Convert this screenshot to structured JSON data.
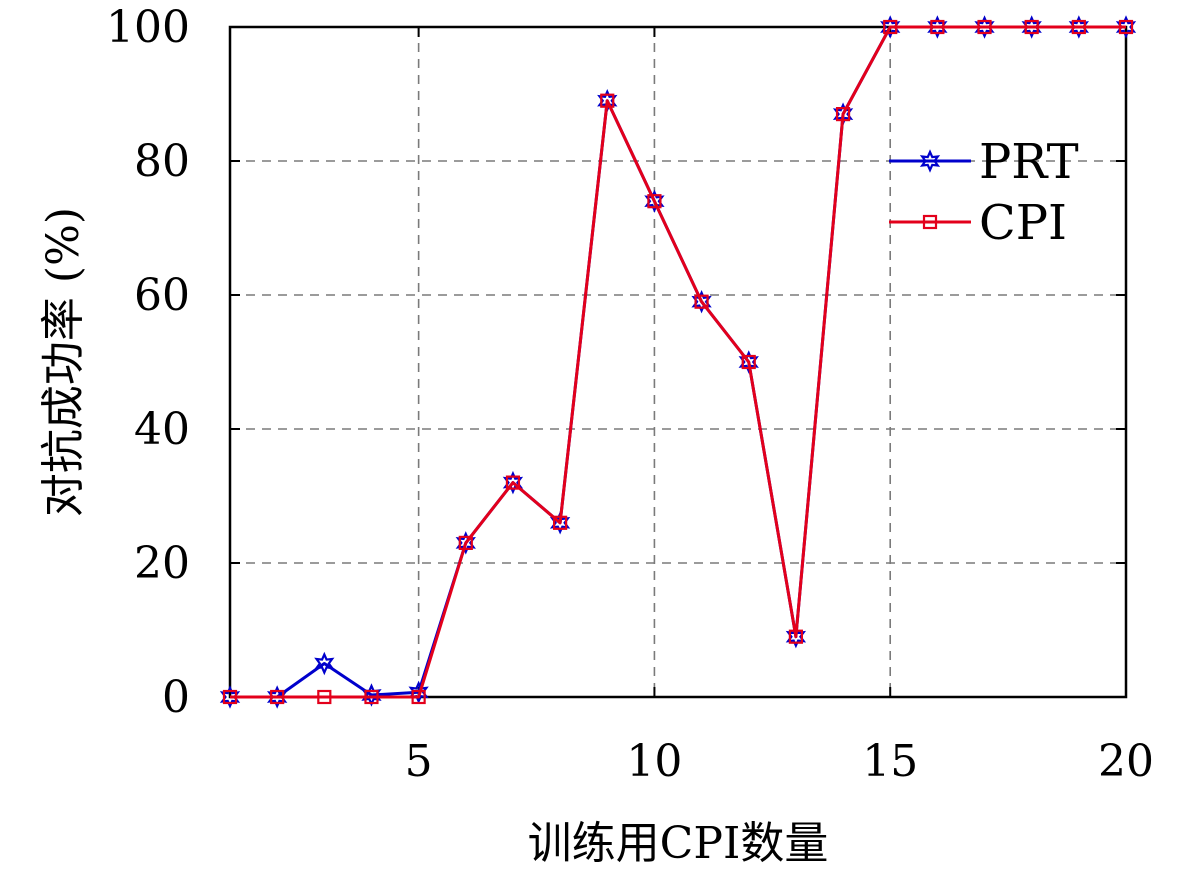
{
  "chart_data": {
    "type": "line",
    "xlabel": "训练用CPI数量",
    "ylabel": "对抗成功率 (%)",
    "xlim": [
      1,
      20
    ],
    "ylim": [
      0,
      100
    ],
    "x": [
      1,
      2,
      3,
      4,
      5,
      6,
      7,
      8,
      9,
      10,
      11,
      12,
      13,
      14,
      15,
      16,
      17,
      18,
      19,
      20
    ],
    "x_ticks": [
      5,
      10,
      15,
      20
    ],
    "y_ticks": [
      0,
      20,
      40,
      60,
      80,
      100
    ],
    "grid": true,
    "legend_position": "upper-right",
    "series": [
      {
        "name": "PRT",
        "color": "#0000cc",
        "marker": "star",
        "values": [
          0,
          0,
          5,
          0.3,
          0.7,
          23,
          32,
          26,
          89,
          74,
          59,
          50,
          9,
          87,
          100,
          100,
          100,
          100,
          100,
          100
        ]
      },
      {
        "name": "CPI",
        "color": "#e3001b",
        "marker": "square",
        "values": [
          0,
          0,
          0,
          0,
          0,
          23,
          32,
          26,
          89,
          74,
          59,
          50,
          9,
          87,
          100,
          100,
          100,
          100,
          100,
          100
        ]
      }
    ]
  }
}
